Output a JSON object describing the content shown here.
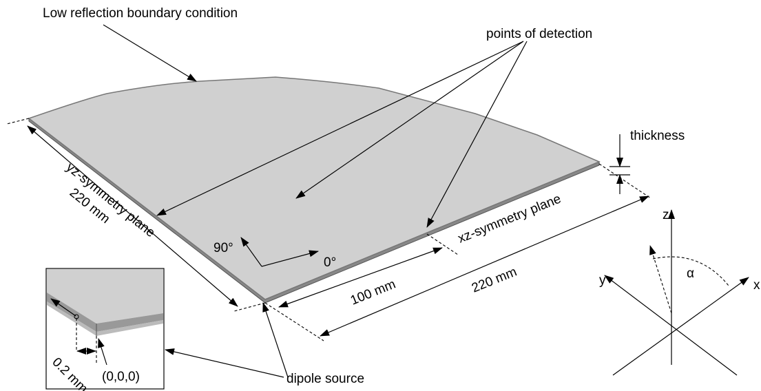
{
  "labels": {
    "boundary": "Low reflection boundary condition",
    "detection": "points of detection",
    "thickness": "thickness",
    "yz_plane": "yz-symmetry plane",
    "left_length": "220 mm",
    "xz_plane": "xz-symmetry plane",
    "angle_90": "90°",
    "angle_0": "0°",
    "length_100": "100 mm",
    "right_length": "220 mm",
    "axis_z": "z",
    "axis_y": "y",
    "axis_x": "x",
    "alpha": "α",
    "offset": "0.2 mm",
    "origin": "(0,0,0)",
    "source": "dipole source"
  }
}
